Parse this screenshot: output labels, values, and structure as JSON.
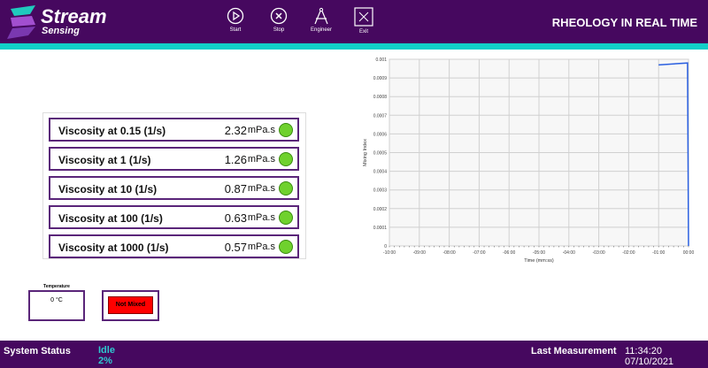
{
  "header": {
    "logo_line1": "Stream",
    "logo_line2": "Sensing",
    "title": "RHEOLOGY IN REAL TIME",
    "toolbar": [
      {
        "label": "Start",
        "icon": "play-circle-icon"
      },
      {
        "label": "Stop",
        "icon": "x-circle-icon"
      },
      {
        "label": "Engineer",
        "icon": "compass-icon"
      },
      {
        "label": "Exit",
        "icon": "x-square-icon"
      }
    ]
  },
  "viscosity": [
    {
      "label": "Viscosity at 0.15 (1/s)",
      "value": "2.32",
      "unit": "mPa.s",
      "status": "green"
    },
    {
      "label": "Viscosity at 1 (1/s)",
      "value": "1.26",
      "unit": "mPa.s",
      "status": "green"
    },
    {
      "label": "Viscosity at 10 (1/s)",
      "value": "0.87",
      "unit": "mPa.s",
      "status": "green"
    },
    {
      "label": "Viscosity at 100 (1/s)",
      "value": "0.63",
      "unit": "mPa.s",
      "status": "green"
    },
    {
      "label": "Viscosity at 1000 (1/s)",
      "value": "0.57",
      "unit": "mPa.s",
      "status": "green"
    }
  ],
  "temperature": {
    "label": "Temperature",
    "value": "0 °C"
  },
  "mix_status": {
    "label": "Not Mixed",
    "color": "#ff0000"
  },
  "footer": {
    "status_label": "System Status",
    "status_value": "Idle",
    "progress": "2%",
    "last_label": "Last Measurement",
    "last_value": "11:34:20 07/10/2021"
  },
  "chart_data": {
    "type": "line",
    "xlabel": "Time (mm:ss)",
    "ylabel": "Mixing Index",
    "x_ticks": [
      "-10:00",
      "-09:00",
      "-08:00",
      "-07:00",
      "-06:00",
      "-05:00",
      "-04:00",
      "-03:00",
      "-02:00",
      "-01:00",
      "00:00"
    ],
    "y_ticks": [
      "0",
      "0.0001",
      "0.0002",
      "0.0003",
      "0.0004",
      "0.0005",
      "0.0006",
      "0.0007",
      "0.0008",
      "0.0009",
      "0.001"
    ],
    "xlim": [
      -600,
      0
    ],
    "ylim": [
      0,
      0.001
    ],
    "grid": true,
    "color": "#2a5fe0",
    "series": [
      {
        "x": [
          -60,
          -2,
          0
        ],
        "y": [
          0.00097,
          0.00098,
          0
        ]
      }
    ]
  }
}
